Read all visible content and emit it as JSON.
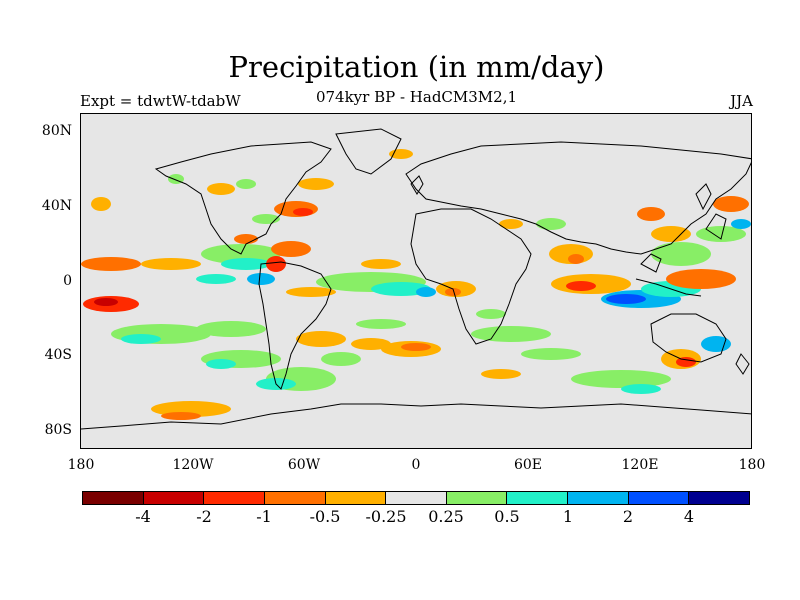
{
  "title": "Precipitation (in mm/day)",
  "subtitle": "074kyr BP - HadCM3M2,1",
  "left_label": "Expt = tdwtW-tdabW",
  "right_label": "JJA",
  "lat_labels": [
    "80N",
    "40N",
    "0",
    "40S",
    "80S"
  ],
  "lon_labels": [
    "180",
    "120W",
    "60W",
    "0",
    "60E",
    "120E",
    "180"
  ],
  "colorbar": {
    "colors": [
      "#7a0000",
      "#c80000",
      "#ff2a00",
      "#ff7000",
      "#ffb000",
      "#e6e6e6",
      "#88ee66",
      "#22f0c8",
      "#00b4f0",
      "#0050ff",
      "#000090"
    ],
    "labels": [
      "-4",
      "-2",
      "-1",
      "-0.5",
      "-0.25",
      "0.25",
      "0.5",
      "1",
      "2",
      "4"
    ]
  },
  "colors": {
    "map_background": "#e6e6e6",
    "coastline": "#000000"
  }
}
